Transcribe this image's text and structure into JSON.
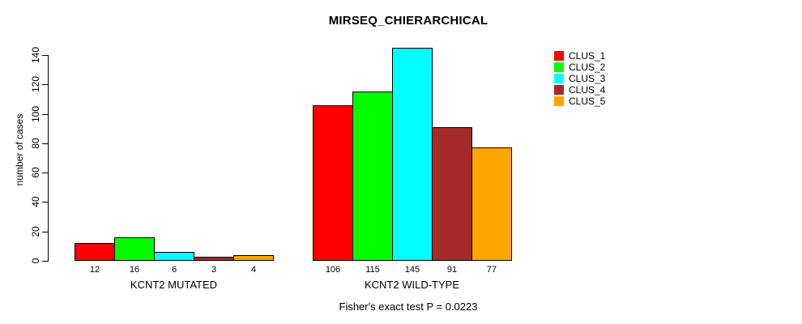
{
  "chart_data": {
    "type": "bar",
    "title": "MIRSEQ_CHIERARCHICAL",
    "ylabel": "number of cases",
    "footnote": "Fisher's exact test P = 0.0223",
    "ylim": [
      0,
      140
    ],
    "yticks": [
      0,
      20,
      40,
      60,
      80,
      100,
      120,
      140
    ],
    "grid": false,
    "legend_position": "right",
    "categories": [
      "KCNT2 MUTATED",
      "KCNT2 WILD-TYPE"
    ],
    "series": [
      {
        "name": "CLUS_1",
        "color": "#FF0000",
        "values": [
          12,
          106
        ]
      },
      {
        "name": "CLUS_2",
        "color": "#00FF00",
        "values": [
          16,
          115
        ]
      },
      {
        "name": "CLUS_3",
        "color": "#00FFFF",
        "values": [
          6,
          145
        ]
      },
      {
        "name": "CLUS_4",
        "color": "#A52A2A",
        "values": [
          3,
          91
        ]
      },
      {
        "name": "CLUS_5",
        "color": "#FFA500",
        "values": [
          4,
          77
        ]
      }
    ],
    "bar_value_labels_shown": true
  }
}
